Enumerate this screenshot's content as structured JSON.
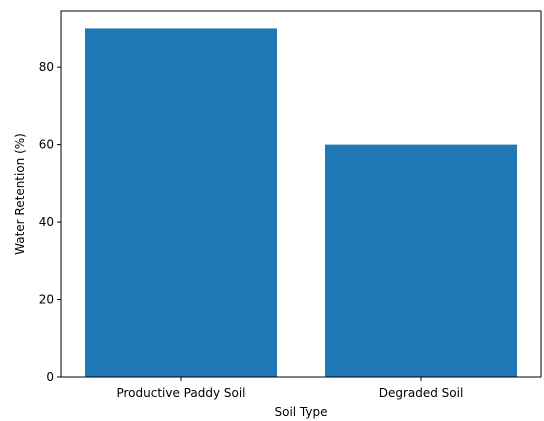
{
  "chart_data": {
    "type": "bar",
    "categories": [
      "Productive Paddy Soil",
      "Degraded Soil"
    ],
    "values": [
      90,
      60
    ],
    "xlabel": "Soil Type",
    "ylabel": "Water Retention (%)",
    "ylim": [
      0,
      94.5
    ],
    "yticks": [
      0,
      20,
      40,
      60,
      80
    ],
    "grid": false,
    "bar_color": "#1f77b4"
  }
}
